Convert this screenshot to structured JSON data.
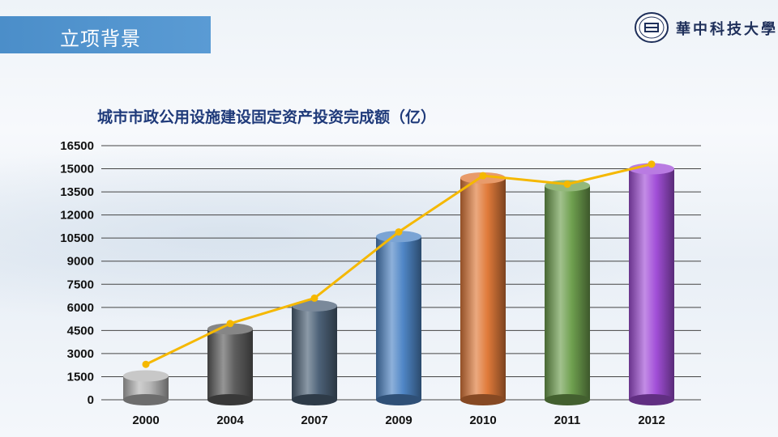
{
  "header": {
    "section_title": "立项背景",
    "university_name": "華中科技大學"
  },
  "colors": {
    "title_bar": "#4b8ec9",
    "line": "#f5b800",
    "grid": "#444444"
  },
  "chart_data": {
    "type": "bar",
    "title": "城市市政公用设施建设固定资产投资完成额（亿）",
    "categories": [
      "2000",
      "2004",
      "2007",
      "2009",
      "2010",
      "2011",
      "2012"
    ],
    "series": [
      {
        "values": [
          1550,
          4600,
          6100,
          10600,
          14400,
          13900,
          15000
        ],
        "style": "cylinder-bar"
      },
      {
        "values": [
          2300,
          4950,
          6600,
          10900,
          14550,
          14000,
          15300
        ],
        "style": "line-with-markers"
      }
    ],
    "bar_colors": [
      "#b5b5b5",
      "#5e5e5e",
      "#4d6278",
      "#4f86c6",
      "#e07a3a",
      "#6fa04f",
      "#a24fd8"
    ],
    "ylim": [
      0,
      16500
    ],
    "yticks": [
      "0",
      "1500",
      "3000",
      "4500",
      "6000",
      "7500",
      "9000",
      "10500",
      "12000",
      "13500",
      "15000",
      "16500"
    ],
    "grid": true
  }
}
